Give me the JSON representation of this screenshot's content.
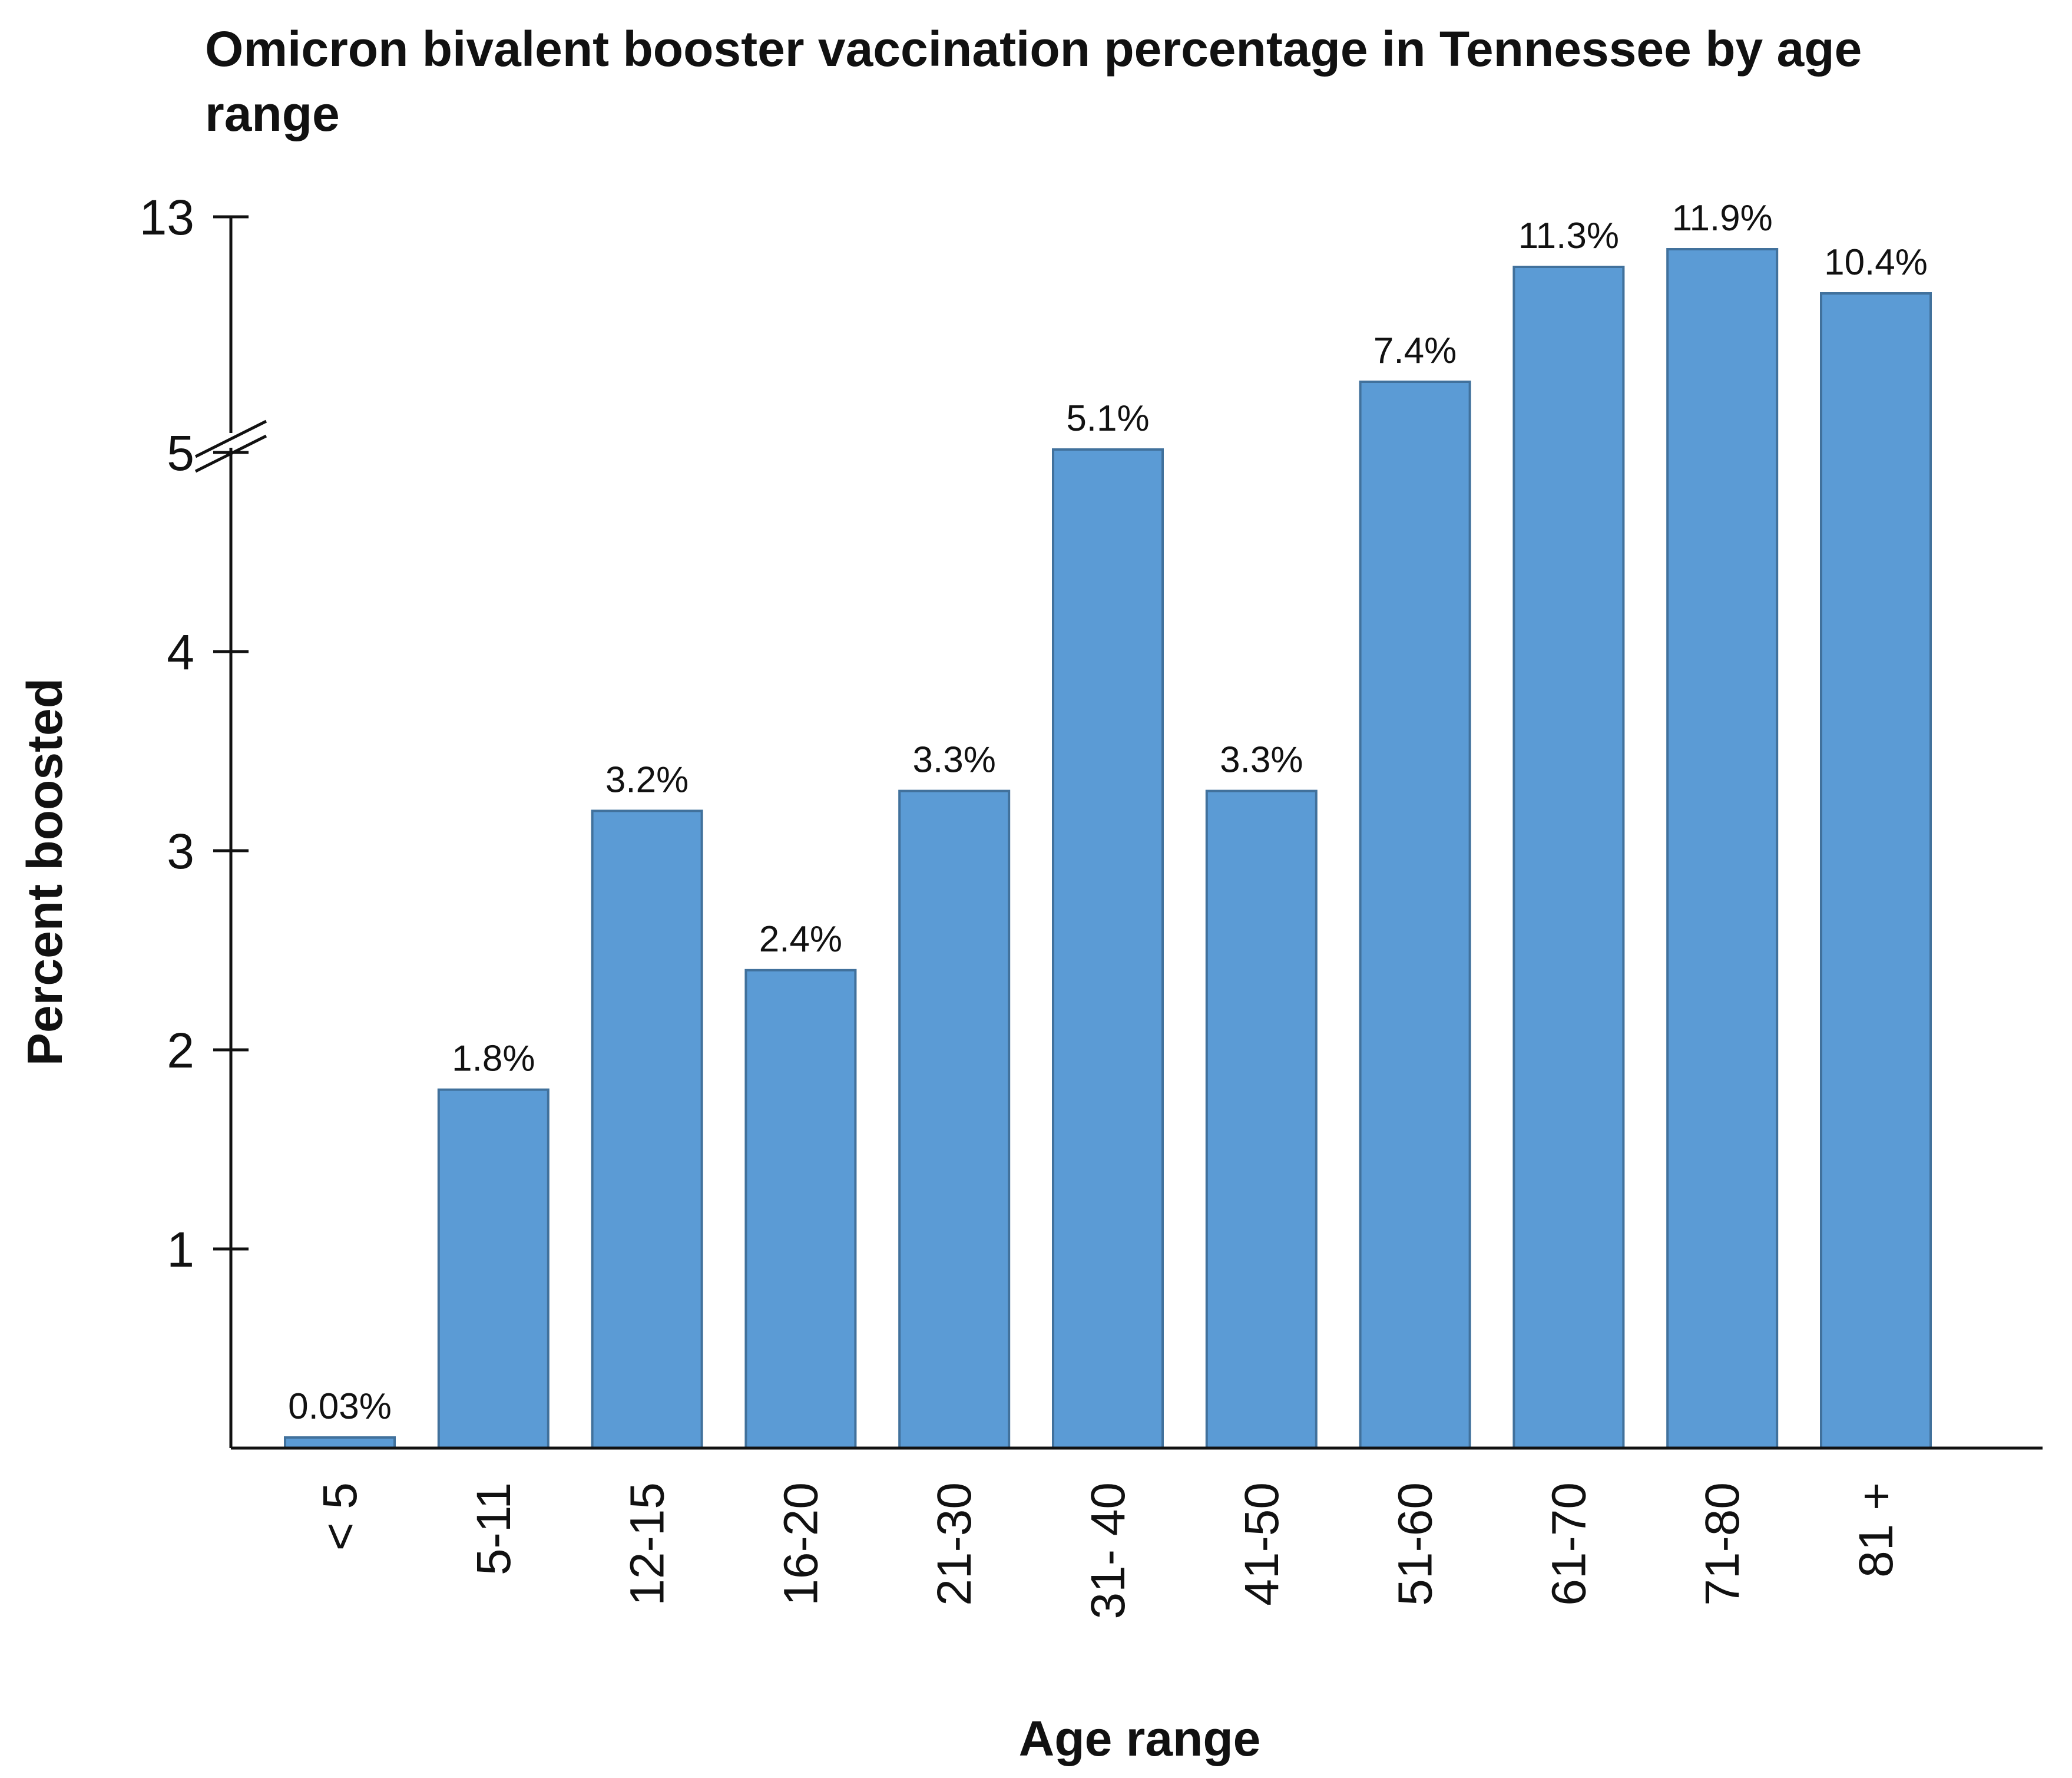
{
  "chart_data": {
    "type": "bar",
    "title": "Omicron bivalent booster vaccination percentage in Tennessee by age range",
    "xlabel": "Age range",
    "ylabel": "Percent boosted",
    "categories": [
      "< 5",
      "5-11",
      "12-15",
      "16-20",
      "21-30",
      "31- 40",
      "41-50",
      "51-60",
      "61-70",
      "71-80",
      "81 +"
    ],
    "values": [
      0.03,
      1.8,
      3.2,
      2.4,
      3.3,
      5.1,
      3.3,
      7.4,
      11.3,
      11.9,
      10.4
    ],
    "value_labels": [
      "0.03%",
      "1.8%",
      "3.2%",
      "2.4%",
      "3.3%",
      "5.1%",
      "3.3%",
      "7.4%",
      "11.3%",
      "11.9%",
      "10.4%"
    ],
    "y_ticks": [
      1,
      2,
      3,
      4,
      5,
      13
    ],
    "y_tick_labels": [
      "1",
      "2",
      "3",
      "4",
      "5",
      "13"
    ],
    "ylim": [
      0,
      13
    ],
    "axis_break": [
      5,
      13
    ],
    "grid": false,
    "legend": "none",
    "bar_color": "#5b9bd5",
    "bar_edge_color": "#41719c"
  }
}
